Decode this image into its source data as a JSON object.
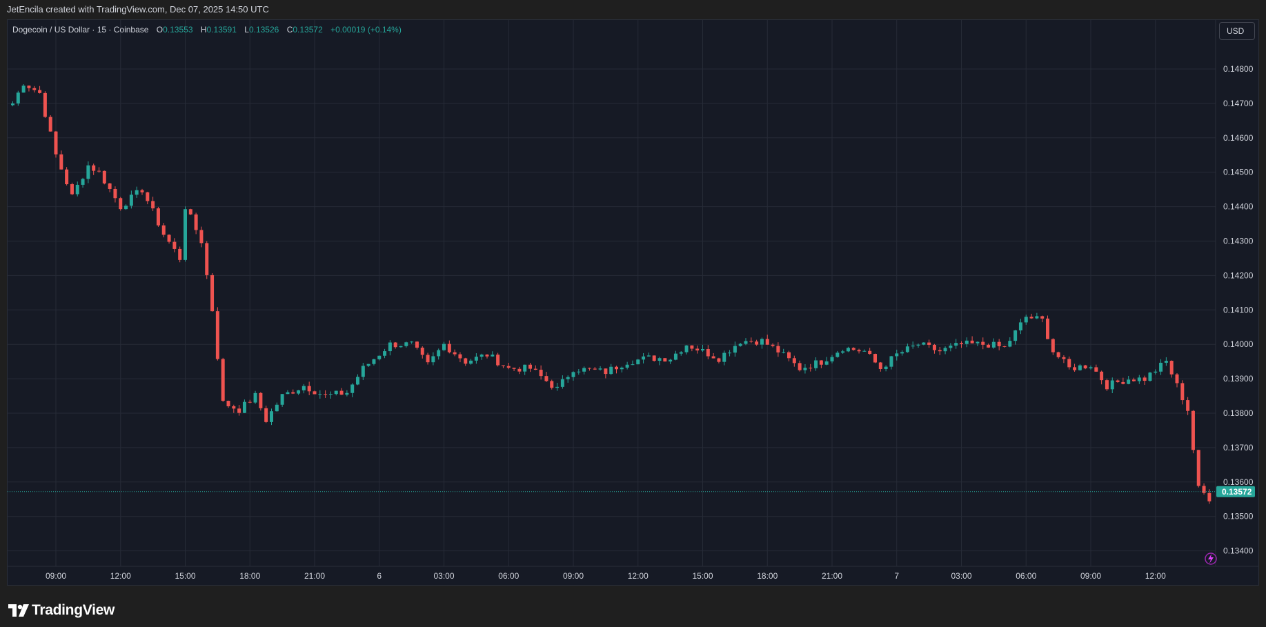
{
  "header": {
    "attribution": "JetEncila created with TradingView.com, Dec 07, 2025 14:50 UTC"
  },
  "legend": {
    "symbol": "Dogecoin / US Dollar · 15 · Coinbase",
    "open_label": "O",
    "open": "0.13553",
    "high_label": "H",
    "high": "0.13591",
    "low_label": "L",
    "low": "0.13526",
    "close_label": "C",
    "close": "0.13572",
    "change": "+0.00019 (+0.14%)"
  },
  "currency_button": "USD",
  "footer": {
    "logo_text": "TradingView"
  },
  "colors": {
    "background": "#161a25",
    "grid": "#262b37",
    "up": "#26a69a",
    "down": "#ef5350",
    "text": "#d1d4dc",
    "price_line": "#26a69a"
  },
  "chart_data": {
    "type": "candlestick",
    "title": "Dogecoin / US Dollar · 15 · Coinbase",
    "x_tick_labels": [
      "09:00",
      "12:00",
      "15:00",
      "18:00",
      "21:00",
      "6",
      "03:00",
      "06:00",
      "09:00",
      "12:00",
      "15:00",
      "18:00",
      "21:00",
      "7",
      "03:00",
      "06:00",
      "09:00",
      "12:00"
    ],
    "y_tick_labels": [
      "0.14800",
      "0.14700",
      "0.14600",
      "0.14500",
      "0.14400",
      "0.14300",
      "0.14200",
      "0.14100",
      "0.14000",
      "0.13900",
      "0.13800",
      "0.13700",
      "0.13600",
      "0.13500",
      "0.13400"
    ],
    "y_range": [
      0.1337,
      0.1492
    ],
    "grid": true,
    "last_price": "0.13572",
    "anchors": [
      [
        "Dec 5 07:00",
        0.147
      ],
      [
        "Dec 5 07:30",
        0.1476
      ],
      [
        "Dec 5 08:15",
        0.1473
      ],
      [
        "Dec 5 09:00",
        0.1455
      ],
      [
        "Dec 5 09:45",
        0.1443
      ],
      [
        "Dec 5 10:30",
        0.1452
      ],
      [
        "Dec 5 11:00",
        0.145
      ],
      [
        "Dec 5 12:00",
        0.144
      ],
      [
        "Dec 5 13:00",
        0.1445
      ],
      [
        "Dec 5 14:00",
        0.1432
      ],
      [
        "Dec 5 14:45",
        0.1425
      ],
      [
        "Dec 5 15:00",
        0.144
      ],
      [
        "Dec 5 15:45",
        0.143
      ],
      [
        "Dec 5 16:15",
        0.141
      ],
      [
        "Dec 5 16:45",
        0.1383
      ],
      [
        "Dec 5 17:30",
        0.1381
      ],
      [
        "Dec 5 18:15",
        0.1385
      ],
      [
        "Dec 5 18:45",
        0.1378
      ],
      [
        "Dec 5 19:30",
        0.1385
      ],
      [
        "Dec 5 20:30",
        0.1388
      ],
      [
        "Dec 5 21:30",
        0.1385
      ],
      [
        "Dec 5 22:30",
        0.1386
      ],
      [
        "Dec 5 23:15",
        0.1393
      ],
      [
        "Dec 6 00:30",
        0.14
      ],
      [
        "Dec 6 01:30",
        0.14
      ],
      [
        "Dec 6 02:15",
        0.1394
      ],
      [
        "Dec 6 03:00",
        0.14
      ],
      [
        "Dec 6 04:00",
        0.1395
      ],
      [
        "Dec 6 05:00",
        0.1397
      ],
      [
        "Dec 6 06:00",
        0.1393
      ],
      [
        "Dec 6 07:00",
        0.1393
      ],
      [
        "Dec 6 08:15",
        0.1387
      ],
      [
        "Dec 6 09:00",
        0.1393
      ],
      [
        "Dec 6 10:30",
        0.1392
      ],
      [
        "Dec 6 11:30",
        0.1395
      ],
      [
        "Dec 6 12:30",
        0.1396
      ],
      [
        "Dec 6 13:30",
        0.1396
      ],
      [
        "Dec 6 14:15",
        0.14
      ],
      [
        "Dec 6 15:00",
        0.1398
      ],
      [
        "Dec 6 15:45",
        0.1396
      ],
      [
        "Dec 6 16:45",
        0.1401
      ],
      [
        "Dec 6 17:45",
        0.1401
      ],
      [
        "Dec 6 18:30",
        0.1398
      ],
      [
        "Dec 6 19:30",
        0.1393
      ],
      [
        "Dec 6 20:30",
        0.1395
      ],
      [
        "Dec 6 21:30",
        0.1399
      ],
      [
        "Dec 6 22:30",
        0.1398
      ],
      [
        "Dec 6 23:15",
        0.1393
      ],
      [
        "Dec 7 00:00",
        0.1397
      ],
      [
        "Dec 7 01:00",
        0.14
      ],
      [
        "Dec 7 02:00",
        0.1398
      ],
      [
        "Dec 7 03:00",
        0.14
      ],
      [
        "Dec 7 04:15",
        0.14
      ],
      [
        "Dec 7 05:00",
        0.1399
      ],
      [
        "Dec 7 06:00",
        0.1408
      ],
      [
        "Dec 7 06:45",
        0.1407
      ],
      [
        "Dec 7 07:15",
        0.1398
      ],
      [
        "Dec 7 08:00",
        0.1393
      ],
      [
        "Dec 7 09:00",
        0.1394
      ],
      [
        "Dec 7 09:45",
        0.1388
      ],
      [
        "Dec 7 10:45",
        0.139
      ],
      [
        "Dec 7 11:30",
        0.139
      ],
      [
        "Dec 7 12:30",
        0.1395
      ],
      [
        "Dec 7 13:00",
        0.1388
      ],
      [
        "Dec 7 13:30",
        0.1381
      ],
      [
        "Dec 7 14:00",
        0.1358
      ],
      [
        "Dec 7 14:30",
        0.13553
      ],
      [
        "Dec 7 14:45",
        0.13572
      ]
    ]
  }
}
